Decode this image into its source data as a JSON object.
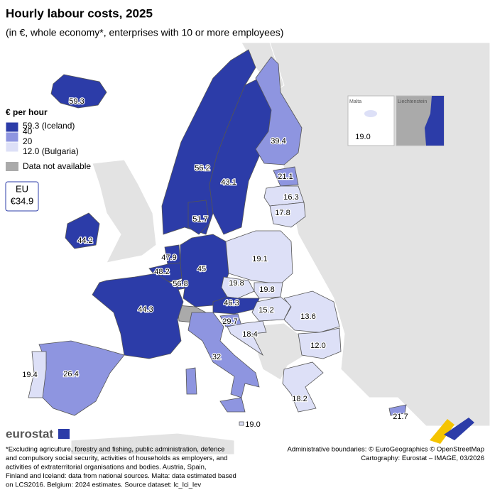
{
  "title": "Hourly labour costs, 2025",
  "subtitle": "(in €, whole economy*, enterprises with 10 or more employees)",
  "legend": {
    "title": "€ per hour",
    "scale": [
      {
        "value": 59.3,
        "label": "59.3 (Iceland)"
      },
      40,
      20,
      {
        "value": 12,
        "label": "12.0 (Bulgaria)"
      }
    ],
    "colors": [
      "#2c3ca8",
      "#8e95e0",
      "#dde0f7"
    ],
    "na_label": "Data not available",
    "na_color": "#aaaaaa"
  },
  "eu": {
    "label": "EU",
    "value": 34.9,
    "value_label": "€34.9"
  },
  "map": {
    "regions": [
      {
        "value": 59.3
      },
      {
        "value": 56.2
      },
      {
        "value": 43.1
      },
      {
        "value": 39.4
      },
      {
        "value": 21.1
      },
      {
        "value": 16.3
      },
      {
        "value": 17.8
      },
      {
        "value": 51.7
      },
      {
        "value": 44.2
      },
      {
        "value": 47.9
      },
      {
        "value": 48.2
      },
      {
        "value": 56.8
      },
      {
        "value": 45.0
      },
      {
        "value": 19.1
      },
      {
        "value": 19.8
      },
      {
        "value": 19.8
      },
      {
        "value": 46.3
      },
      {
        "value": 15.2
      },
      {
        "value": 13.6
      },
      {
        "value": 12,
        "value_label": "12.0"
      },
      {
        "value": 29.7
      },
      {
        "value": 18.4
      },
      {
        "value": 44.3
      },
      {
        "value": 26.4
      },
      {
        "value": 19.4
      },
      {
        "value": 32.0
      },
      {
        "value": 19,
        "value_label": "19.0"
      },
      {
        "value": 18.2
      },
      {
        "value": 21.7
      }
    ],
    "insets": [
      {
        "label": "Malta",
        "value": 19,
        "value_label": "19.0"
      },
      {
        "label": "Liechtenstein"
      }
    ]
  },
  "logo": "eurostat",
  "footnote": [
    "*Excluding agriculture, forestry and fishing, public administration, defence",
    "and compulsory social security, activities of households as employers, and",
    "activities of extraterritorial organisations and bodies. Austria, Spain,",
    "Finland and Iceland: data from national sources. Malta: data estimated based",
    "on LCS2016. Belgium: 2024 estimates. Source dataset: lc_lci_lev"
  ],
  "credits": [
    "Administrative boundaries: © EuroGeographics © OpenStreetMap",
    "Cartography: Eurostat – IMAGE, 03/2026"
  ]
}
